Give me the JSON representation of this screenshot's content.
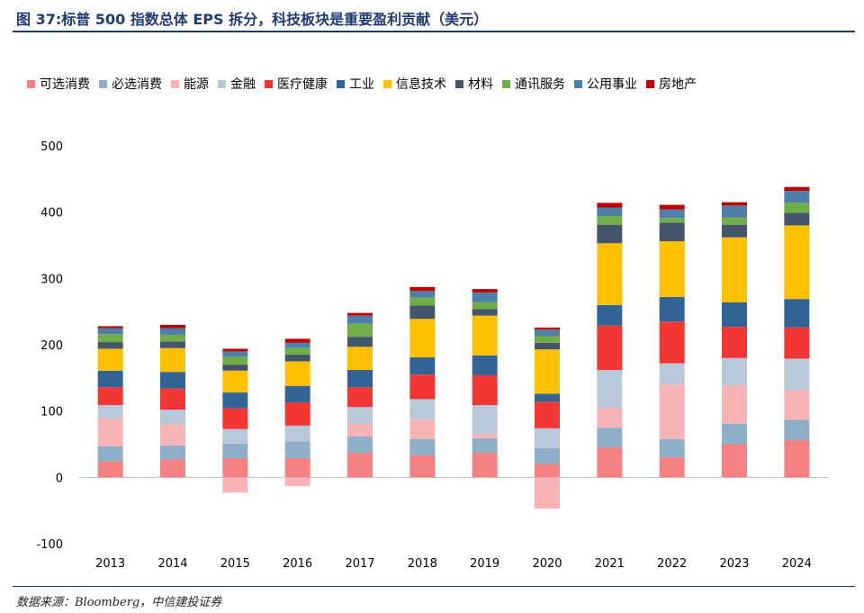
{
  "header": {
    "title": "图 37:标普 500 指数总体 EPS 拆分，科技板块是重要盈利贡献（美元）"
  },
  "footer": {
    "source": "数据来源：Bloomberg，中信建投证券"
  },
  "chart_data": {
    "type": "bar",
    "stacked": true,
    "title": "",
    "xlabel": "",
    "ylabel": "",
    "ylim": [
      -100,
      500
    ],
    "yticks": [
      -100,
      0,
      100,
      200,
      300,
      400,
      500
    ],
    "grid": false,
    "legend_position": "top",
    "categories": [
      "2013",
      "2014",
      "2015",
      "2016",
      "2017",
      "2018",
      "2019",
      "2020",
      "2021",
      "2022",
      "2023",
      "2024"
    ],
    "series": [
      {
        "name": "可选消费",
        "color": "#f4817f",
        "values": [
          24,
          27,
          29,
          29,
          37,
          33,
          37,
          20,
          45,
          30,
          50,
          56
        ]
      },
      {
        "name": "必选消费",
        "color": "#8fafc9",
        "values": [
          23,
          21,
          22,
          25,
          25,
          25,
          22,
          24,
          30,
          28,
          31,
          31
        ]
      },
      {
        "name": "能源",
        "color": "#f8b3b6",
        "values": [
          42,
          32,
          -23,
          -13,
          19,
          29,
          7,
          -47,
          30,
          82,
          58,
          45
        ]
      },
      {
        "name": "金融",
        "color": "#b7c8d8",
        "values": [
          20,
          22,
          22,
          24,
          25,
          31,
          43,
          30,
          57,
          32,
          41,
          47
        ]
      },
      {
        "name": "医疗健康",
        "color": "#f23636",
        "values": [
          27,
          32,
          31,
          35,
          30,
          37,
          45,
          40,
          67,
          63,
          47,
          47
        ]
      },
      {
        "name": "工业",
        "color": "#316394",
        "values": [
          25,
          25,
          24,
          25,
          26,
          26,
          30,
          12,
          31,
          37,
          37,
          43
        ]
      },
      {
        "name": "信息技术",
        "color": "#ffc000",
        "values": [
          33,
          36,
          33,
          37,
          35,
          58,
          60,
          67,
          93,
          84,
          98,
          111
        ]
      },
      {
        "name": "材料",
        "color": "#44546a",
        "values": [
          10,
          10,
          9,
          10,
          15,
          20,
          10,
          10,
          28,
          28,
          19,
          19
        ]
      },
      {
        "name": "通讯服务",
        "color": "#70ad47",
        "values": [
          12,
          10,
          12,
          10,
          20,
          12,
          10,
          10,
          13,
          7,
          11,
          15
        ]
      },
      {
        "name": "公用事业",
        "color": "#4d7fa8",
        "values": [
          9,
          10,
          8,
          8,
          12,
          10,
          15,
          10,
          13,
          13,
          18,
          18
        ]
      },
      {
        "name": "房地产",
        "color": "#c00000",
        "values": [
          3,
          5,
          4,
          6,
          4,
          6,
          5,
          3,
          7,
          7,
          5,
          6
        ]
      }
    ]
  }
}
